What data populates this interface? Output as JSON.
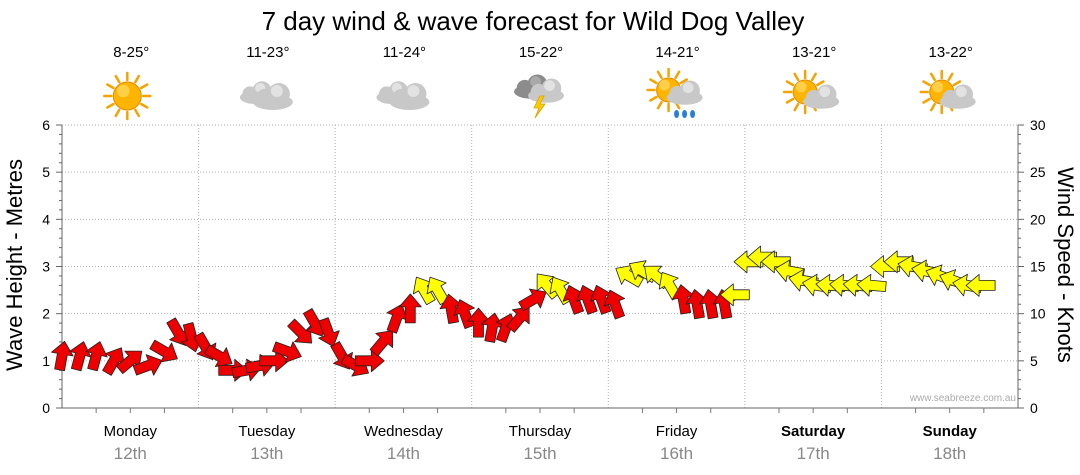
{
  "chart_data": {
    "type": "line",
    "title": "7 day wind & wave forecast for Wild Dog Valley",
    "ylabel_left": "Wave Height - Metres",
    "ylabel_right": "Wind Speed - Knots",
    "left_axis": {
      "ylim": [
        0,
        6
      ],
      "ticks": [
        "0",
        "1",
        "2",
        "3",
        "4",
        "5",
        "6"
      ]
    },
    "right_axis": {
      "ylim": [
        0,
        30
      ],
      "ticks": [
        "0",
        "5",
        "10",
        "15",
        "20",
        "25",
        "30"
      ]
    },
    "grid": true,
    "watermark": "www.seabreeze.com.au",
    "days": [
      {
        "day": "Monday",
        "date": "12th",
        "bold": false,
        "temp": "8-25°",
        "icon": "sunny-icon"
      },
      {
        "day": "Tuesday",
        "date": "13th",
        "bold": false,
        "temp": "11-23°",
        "icon": "cloudy-icon"
      },
      {
        "day": "Wednesday",
        "date": "14th",
        "bold": false,
        "temp": "11-24°",
        "icon": "cloudy-icon"
      },
      {
        "day": "Thursday",
        "date": "15th",
        "bold": false,
        "temp": "15-22°",
        "icon": "storm-icon"
      },
      {
        "day": "Friday",
        "date": "16th",
        "bold": false,
        "temp": "14-21°",
        "icon": "sun-showers-icon"
      },
      {
        "day": "Saturday",
        "date": "17th",
        "bold": true,
        "temp": "13-21°",
        "icon": "partly-cloudy-icon"
      },
      {
        "day": "Sunday",
        "date": "18th",
        "bold": true,
        "temp": "13-22°",
        "icon": "partly-cloudy-icon"
      }
    ],
    "series": [
      {
        "unit": "knots",
        "colors": {
          "light": "#ee0000",
          "moderate": "#ffff00"
        },
        "points": [
          {
            "t": 0.0,
            "v": 5.5,
            "dir": 190,
            "c": "light"
          },
          {
            "t": 0.13,
            "v": 5.5,
            "dir": 195,
            "c": "light"
          },
          {
            "t": 0.25,
            "v": 5.5,
            "dir": 195,
            "c": "light"
          },
          {
            "t": 0.38,
            "v": 5.0,
            "dir": 210,
            "c": "light"
          },
          {
            "t": 0.5,
            "v": 5.0,
            "dir": 230,
            "c": "light"
          },
          {
            "t": 0.63,
            "v": 4.5,
            "dir": 250,
            "c": "light"
          },
          {
            "t": 0.75,
            "v": 6.0,
            "dir": 300,
            "c": "light"
          },
          {
            "t": 0.85,
            "v": 8.0,
            "dir": 330,
            "c": "light"
          },
          {
            "t": 0.95,
            "v": 7.5,
            "dir": 345,
            "c": "light"
          },
          {
            "t": 1.05,
            "v": 6.5,
            "dir": 330,
            "c": "light"
          },
          {
            "t": 1.15,
            "v": 5.5,
            "dir": 300,
            "c": "light"
          },
          {
            "t": 1.25,
            "v": 4.0,
            "dir": 270,
            "c": "light"
          },
          {
            "t": 1.35,
            "v": 4.0,
            "dir": 260,
            "c": "light"
          },
          {
            "t": 1.45,
            "v": 4.5,
            "dir": 260,
            "c": "light"
          },
          {
            "t": 1.55,
            "v": 5.0,
            "dir": 270,
            "c": "light"
          },
          {
            "t": 1.65,
            "v": 6.0,
            "dir": 290,
            "c": "light"
          },
          {
            "t": 1.75,
            "v": 8.0,
            "dir": 315,
            "c": "light"
          },
          {
            "t": 1.85,
            "v": 9.0,
            "dir": 330,
            "c": "light"
          },
          {
            "t": 1.95,
            "v": 8.0,
            "dir": 340,
            "c": "light"
          },
          {
            "t": 2.05,
            "v": 5.5,
            "dir": 330,
            "c": "light"
          },
          {
            "t": 2.15,
            "v": 4.5,
            "dir": 300,
            "c": "light"
          },
          {
            "t": 2.25,
            "v": 5.0,
            "dir": 270,
            "c": "light"
          },
          {
            "t": 2.35,
            "v": 7.0,
            "dir": 220,
            "c": "light"
          },
          {
            "t": 2.45,
            "v": 9.5,
            "dir": 200,
            "c": "light"
          },
          {
            "t": 2.55,
            "v": 10.5,
            "dir": 180,
            "c": "light"
          },
          {
            "t": 2.65,
            "v": 12.5,
            "dir": 150,
            "c": "moderate"
          },
          {
            "t": 2.75,
            "v": 12.5,
            "dir": 150,
            "c": "moderate"
          },
          {
            "t": 2.85,
            "v": 10.5,
            "dir": 170,
            "c": "light"
          },
          {
            "t": 2.95,
            "v": 10.0,
            "dir": 160,
            "c": "light"
          },
          {
            "t": 3.05,
            "v": 9.0,
            "dir": 180,
            "c": "light"
          },
          {
            "t": 3.15,
            "v": 8.5,
            "dir": 190,
            "c": "light"
          },
          {
            "t": 3.25,
            "v": 8.5,
            "dir": 200,
            "c": "light"
          },
          {
            "t": 3.35,
            "v": 9.5,
            "dir": 220,
            "c": "light"
          },
          {
            "t": 3.45,
            "v": 11.5,
            "dir": 240,
            "c": "light"
          },
          {
            "t": 3.55,
            "v": 13.0,
            "dir": 140,
            "c": "moderate"
          },
          {
            "t": 3.65,
            "v": 12.5,
            "dir": 150,
            "c": "moderate"
          },
          {
            "t": 3.75,
            "v": 11.5,
            "dir": 160,
            "c": "light"
          },
          {
            "t": 3.85,
            "v": 11.5,
            "dir": 160,
            "c": "light"
          },
          {
            "t": 3.95,
            "v": 11.5,
            "dir": 160,
            "c": "light"
          },
          {
            "t": 4.05,
            "v": 11.0,
            "dir": 160,
            "c": "light"
          },
          {
            "t": 4.15,
            "v": 14.0,
            "dir": 120,
            "c": "moderate"
          },
          {
            "t": 4.25,
            "v": 14.5,
            "dir": 120,
            "c": "moderate"
          },
          {
            "t": 4.35,
            "v": 14.0,
            "dir": 130,
            "c": "moderate"
          },
          {
            "t": 4.45,
            "v": 13.0,
            "dir": 150,
            "c": "moderate"
          },
          {
            "t": 4.55,
            "v": 11.5,
            "dir": 170,
            "c": "light"
          },
          {
            "t": 4.65,
            "v": 11.0,
            "dir": 170,
            "c": "light"
          },
          {
            "t": 4.75,
            "v": 11.0,
            "dir": 170,
            "c": "light"
          },
          {
            "t": 4.85,
            "v": 11.0,
            "dir": 170,
            "c": "light"
          },
          {
            "t": 4.93,
            "v": 12.0,
            "dir": 90,
            "c": "moderate"
          },
          {
            "t": 5.03,
            "v": 15.5,
            "dir": 90,
            "c": "moderate"
          },
          {
            "t": 5.13,
            "v": 16.0,
            "dir": 90,
            "c": "moderate"
          },
          {
            "t": 5.23,
            "v": 15.5,
            "dir": 90,
            "c": "moderate"
          },
          {
            "t": 5.33,
            "v": 14.5,
            "dir": 100,
            "c": "moderate"
          },
          {
            "t": 5.43,
            "v": 13.5,
            "dir": 100,
            "c": "moderate"
          },
          {
            "t": 5.53,
            "v": 13.0,
            "dir": 100,
            "c": "moderate"
          },
          {
            "t": 5.63,
            "v": 13.0,
            "dir": 95,
            "c": "moderate"
          },
          {
            "t": 5.73,
            "v": 13.0,
            "dir": 95,
            "c": "moderate"
          },
          {
            "t": 5.83,
            "v": 13.0,
            "dir": 95,
            "c": "moderate"
          },
          {
            "t": 5.93,
            "v": 13.0,
            "dir": 95,
            "c": "moderate"
          },
          {
            "t": 6.03,
            "v": 15.0,
            "dir": 90,
            "c": "moderate"
          },
          {
            "t": 6.13,
            "v": 15.5,
            "dir": 90,
            "c": "moderate"
          },
          {
            "t": 6.23,
            "v": 15.0,
            "dir": 100,
            "c": "moderate"
          },
          {
            "t": 6.33,
            "v": 14.5,
            "dir": 100,
            "c": "moderate"
          },
          {
            "t": 6.43,
            "v": 14.0,
            "dir": 110,
            "c": "moderate"
          },
          {
            "t": 6.53,
            "v": 13.5,
            "dir": 110,
            "c": "moderate"
          },
          {
            "t": 6.63,
            "v": 13.0,
            "dir": 100,
            "c": "moderate"
          },
          {
            "t": 6.73,
            "v": 13.0,
            "dir": 90,
            "c": "moderate"
          }
        ]
      }
    ]
  }
}
